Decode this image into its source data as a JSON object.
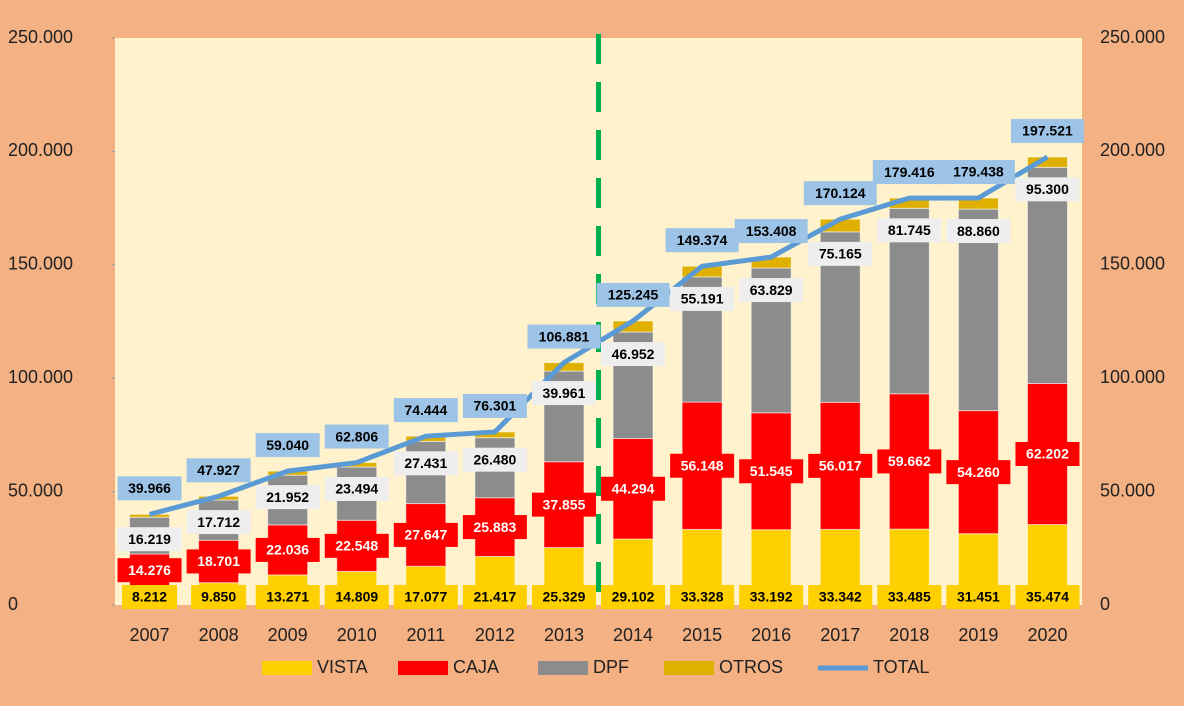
{
  "chart_data": {
    "type": "stacked_bar_line",
    "categories": [
      "2007",
      "2008",
      "2009",
      "2010",
      "2011",
      "2012",
      "2013",
      "2014",
      "2015",
      "2016",
      "2017",
      "2018",
      "2019",
      "2020"
    ],
    "series": [
      {
        "name": "VISTA",
        "color": "#ffd000",
        "values": [
          8212,
          9850,
          13271,
          14809,
          17077,
          21417,
          25329,
          29102,
          33328,
          33192,
          33342,
          33485,
          31451,
          35474
        ],
        "value_labels": [
          "8.212",
          "9.850",
          "13.271",
          "14.809",
          "17.077",
          "21.417",
          "25.329",
          "29.102",
          "33.328",
          "33.192",
          "33.342",
          "33.485",
          "31.451",
          "35.474"
        ]
      },
      {
        "name": "CAJA",
        "color": "#ff0000",
        "values": [
          14276,
          18701,
          22036,
          22548,
          27647,
          25883,
          37855,
          44294,
          56148,
          51545,
          56017,
          59662,
          54260,
          62202
        ],
        "value_labels": [
          "14.276",
          "18.701",
          "22.036",
          "22.548",
          "27.647",
          "25.883",
          "37.855",
          "44.294",
          "56.148",
          "51.545",
          "56.017",
          "59.662",
          "54.260",
          "62.202"
        ]
      },
      {
        "name": "DPF",
        "color": "#8c8c8c",
        "values": [
          16219,
          17712,
          21952,
          23494,
          27431,
          26480,
          39961,
          46952,
          55191,
          63829,
          75165,
          81745,
          88860,
          95300
        ],
        "value_labels": [
          "16.219",
          "17.712",
          "21.952",
          "23.494",
          "27.431",
          "26.480",
          "39.961",
          "46.952",
          "55.191",
          "63.829",
          "75.165",
          "81.745",
          "88.860",
          "95.300"
        ]
      },
      {
        "name": "OTROS",
        "color": "#e0b000",
        "values": [
          1259,
          1664,
          1781,
          1955,
          2289,
          2521,
          3736,
          4897,
          4707,
          4842,
          5600,
          4524,
          4867,
          4545
        ]
      },
      {
        "name": "TOTAL",
        "color": "#5b9bd5",
        "type": "line",
        "values": [
          39966,
          47927,
          59040,
          62806,
          74444,
          76301,
          106881,
          125245,
          149374,
          153408,
          170124,
          179416,
          179438,
          197521
        ],
        "value_labels": [
          "39.966",
          "47.927",
          "59.040",
          "62.806",
          "74.444",
          "76.301",
          "106.881",
          "125.245",
          "149.374",
          "153.408",
          "170.124",
          "179.416",
          "179.438",
          "197.521"
        ]
      }
    ],
    "ylim": [
      0,
      250000
    ],
    "yticks": [
      0,
      {
        "value": 50000,
        "label": "50.000"
      },
      {
        "value": 100000,
        "label": "100.000"
      },
      {
        "value": 150000,
        "label": "150.000"
      },
      {
        "value": 200000,
        "label": "200.000"
      },
      {
        "value": 250000,
        "label": "250.000"
      }
    ],
    "legend": "bottom"
  }
}
